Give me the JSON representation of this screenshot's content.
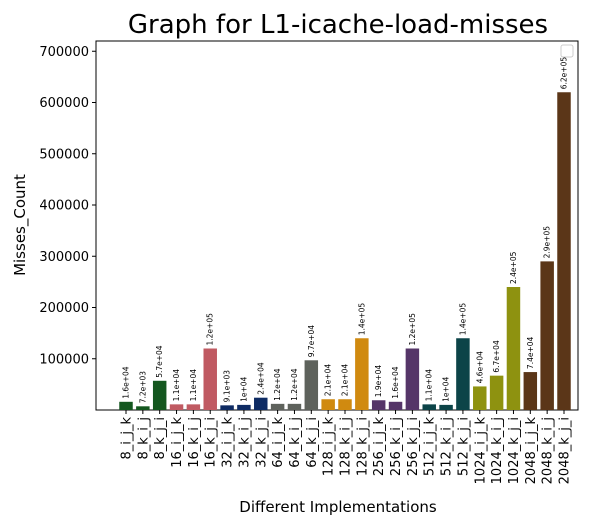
{
  "chart_data": {
    "type": "bar",
    "title": "Graph for L1-icache-load-misses",
    "xlabel": "Different Implementations",
    "ylabel": "Misses_Count",
    "ylim": [
      0,
      720000
    ],
    "yticks": [
      100000,
      200000,
      300000,
      400000,
      500000,
      600000,
      700000
    ],
    "ytick_labels": [
      "100000",
      "200000",
      "300000",
      "400000",
      "500000",
      "600000",
      "700000"
    ],
    "grid": false,
    "legend": {
      "placement": "top-right",
      "entries": []
    },
    "categories": [
      "8_i_j_k",
      "8_k_i_j",
      "8_k_j_i",
      "16_i_j_k",
      "16_k_i_j",
      "16_k_j_i",
      "32_i_j_k",
      "32_k_i_j",
      "32_k_j_i",
      "64_i_j_k",
      "64_k_i_j",
      "64_k_j_i",
      "128_i_j_k",
      "128_k_i_j",
      "128_k_j_i",
      "256_i_j_k",
      "256_k_i_j",
      "256_k_j_i",
      "512_i_j_k",
      "512_k_i_j",
      "512_k_j_i",
      "1024_i_j_k",
      "1024_k_i_j",
      "1024_k_j_i",
      "2048_i_j_k",
      "2048_k_i_j",
      "2048_k_j_i"
    ],
    "values": [
      16000,
      7200,
      57000,
      11000,
      11000,
      120000,
      9100,
      10000,
      24000,
      12000,
      12000,
      97000,
      21000,
      21000,
      140000,
      19000,
      16000,
      120000,
      11000,
      10000,
      140000,
      46000,
      67000,
      240000,
      74000,
      290000,
      620000
    ],
    "data_labels": [
      "1.6e+04",
      "7.2e+03",
      "5.7e+04",
      "1.1e+04",
      "1.1e+04",
      "1.2e+05",
      "9.1e+03",
      "1e+04",
      "2.4e+04",
      "1.2e+04",
      "1.2e+04",
      "9.7e+04",
      "2.1e+04",
      "2.1e+04",
      "1.4e+05",
      "1.9e+04",
      "1.6e+04",
      "1.2e+05",
      "1.1e+04",
      "1e+04",
      "1.4e+05",
      "4.6e+04",
      "6.7e+04",
      "2.4e+05",
      "7.4e+04",
      "2.9e+05",
      "6.2e+05"
    ],
    "colors": [
      "#14571f",
      "#14571f",
      "#14571f",
      "#c05a62",
      "#c05a62",
      "#c05a62",
      "#0e2b63",
      "#0e2b63",
      "#0e2b63",
      "#5e625c",
      "#5e625c",
      "#5e625c",
      "#d08a10",
      "#d08a10",
      "#d08a10",
      "#553568",
      "#553568",
      "#553568",
      "#0c4448",
      "#0c4448",
      "#0c4448",
      "#8e9210",
      "#8e9210",
      "#8e9210",
      "#5b3618",
      "#5b3618",
      "#5b3618"
    ]
  }
}
